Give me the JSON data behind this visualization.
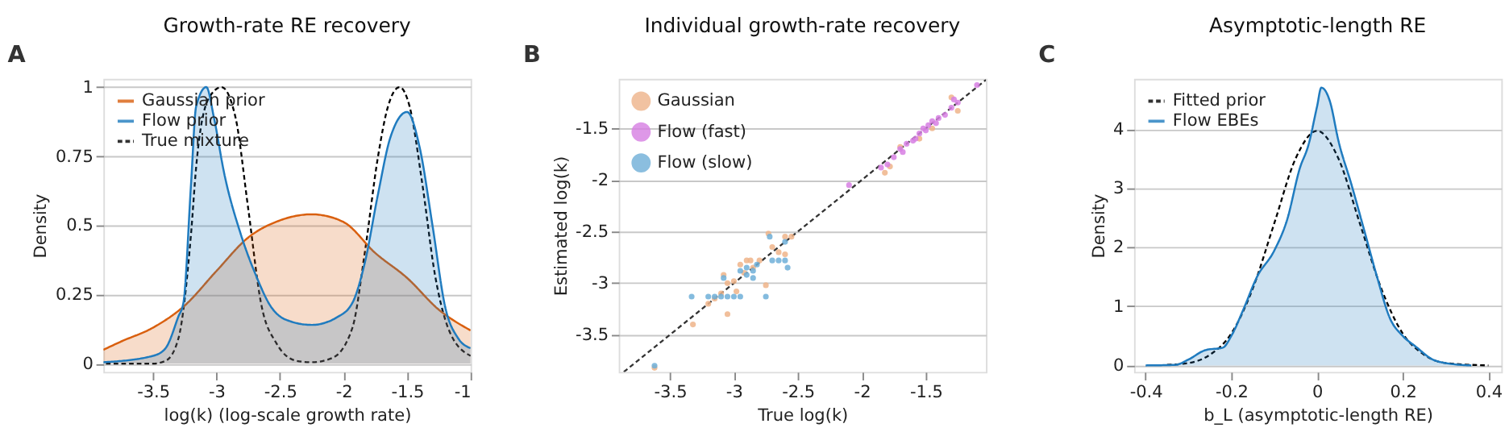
{
  "chart_data": [
    {
      "type": "line",
      "title": "Growth-rate RE recovery",
      "xlabel": "log(k)  (log-scale growth rate)",
      "ylabel": "Density",
      "annotations": [
        "A"
      ],
      "xlim": [
        -3.89,
        -1
      ],
      "xticks": [
        -3.5,
        -3,
        -2.5,
        -2,
        -1.5,
        -1
      ],
      "ylim": [
        -0.03,
        1.03
      ],
      "yticks": [
        0,
        0.25,
        0.5,
        0.75,
        1
      ],
      "grid": "y",
      "legend": "top left",
      "series": [
        {
          "name": "Gaussian prior",
          "type": "area",
          "color": "#d95f0e",
          "line_style": "solid",
          "x": [
            -3.89,
            -3.75,
            -3.5,
            -3.25,
            -3,
            -2.75,
            -2.5,
            -2.25,
            -2,
            -1.75,
            -1.5,
            -1.25,
            -1
          ],
          "values": [
            0.05,
            0.08,
            0.13,
            0.21,
            0.335,
            0.456,
            0.518,
            0.54,
            0.512,
            0.4,
            0.31,
            0.195,
            0.12
          ]
        },
        {
          "name": "Flow prior",
          "type": "area",
          "color": "#1f7bbf",
          "line_style": "solid",
          "x": [
            -3.89,
            -3.5,
            -3.4,
            -3.3,
            -3.26,
            -3.2,
            -3.16,
            -3.08,
            -3.02,
            -2.94,
            -2.81,
            -2.69,
            -2.57,
            -2.45,
            -2.25,
            -2.05,
            -1.93,
            -1.83,
            -1.73,
            -1.63,
            -1.5,
            -1.4,
            -1.3,
            -1.2,
            -1.1,
            -1
          ],
          "values": [
            0.005,
            0.028,
            0.056,
            0.17,
            0.22,
            0.65,
            0.93,
            1.0,
            0.89,
            0.69,
            0.47,
            0.32,
            0.205,
            0.158,
            0.14,
            0.168,
            0.22,
            0.37,
            0.61,
            0.82,
            0.91,
            0.78,
            0.5,
            0.205,
            0.093,
            0.056
          ]
        },
        {
          "name": "True mixture",
          "type": "line",
          "color": "#000000",
          "line_style": "dashed",
          "x": [
            -3.87,
            -3.5,
            -3.4,
            -3.3,
            -3.2,
            -3.16,
            -3.06,
            -2.96,
            -2.85,
            -2.75,
            -2.65,
            -2.53,
            -2.37,
            -2.25,
            -2.09,
            -1.93,
            -1.83,
            -1.73,
            -1.65,
            -1.56,
            -1.48,
            -1.38,
            -1.28,
            -1.16,
            -1
          ],
          "values": [
            0,
            0,
            0.01,
            0.09,
            0.47,
            0.71,
            0.96,
            1.0,
            0.89,
            0.56,
            0.22,
            0.075,
            0.01,
            0.005,
            0.02,
            0.13,
            0.41,
            0.745,
            0.93,
            1.0,
            0.93,
            0.65,
            0.32,
            0.11,
            0.028
          ]
        }
      ]
    },
    {
      "type": "scatter",
      "title": "Individual growth-rate recovery",
      "xlabel": "True log(k)",
      "ylabel": "Estimated log(k)",
      "annotations": [
        "B"
      ],
      "xlim": [
        -3.9,
        -1.03
      ],
      "xticks": [
        -3.5,
        -3,
        -2.5,
        -2,
        -1.5
      ],
      "ylim": [
        -3.86,
        -1.02
      ],
      "yticks": [
        -3.5,
        -3,
        -2.5,
        -2,
        -1.5
      ],
      "grid": "y",
      "legend": "top left",
      "marker": "circle",
      "series": [
        {
          "type": "line",
          "marker": "none",
          "color": "#333333",
          "line_style": "dashed",
          "x": [
            -3.86,
            -1.03
          ],
          "values": [
            -3.86,
            -1.03
          ]
        },
        {
          "name": "Gaussian",
          "color": "#eeb48a",
          "x": [
            -3.62,
            -3.32,
            -3.2,
            -3.15,
            -3.1,
            -3.05,
            -3.05,
            -3.0,
            -2.98,
            -2.95,
            -2.92,
            -2.9,
            -2.87,
            -2.85,
            -2.8,
            -2.75,
            -2.73,
            -2.7,
            -2.65,
            -2.6,
            -2.6,
            -2.55,
            -3.08,
            -1.82,
            -1.78,
            -1.7,
            -1.55,
            -1.45,
            -1.25,
            -1.3
          ],
          "values": [
            -3.82,
            -3.4,
            -3.2,
            -3.15,
            -3.1,
            -3.3,
            -3.0,
            -2.98,
            -3.08,
            -2.82,
            -2.9,
            -2.78,
            -2.78,
            -2.85,
            -2.78,
            -3.02,
            -2.52,
            -2.65,
            -2.7,
            -2.55,
            -2.72,
            -2.55,
            -2.92,
            -1.93,
            -1.87,
            -1.68,
            -1.6,
            -1.5,
            -1.33,
            -1.2
          ]
        },
        {
          "name": "Flow (fast)",
          "color": "#d77fe3",
          "x": [
            -2.1,
            -1.85,
            -1.8,
            -1.75,
            -1.7,
            -1.68,
            -1.65,
            -1.6,
            -1.58,
            -1.55,
            -1.52,
            -1.5,
            -1.48,
            -1.45,
            -1.42,
            -1.4,
            -1.35,
            -1.3,
            -1.28,
            -1.25,
            -1.1
          ],
          "values": [
            -2.05,
            -1.88,
            -1.85,
            -1.78,
            -1.7,
            -1.73,
            -1.65,
            -1.62,
            -1.6,
            -1.55,
            -1.5,
            -1.52,
            -1.47,
            -1.43,
            -1.45,
            -1.4,
            -1.37,
            -1.3,
            -1.22,
            -1.25,
            -1.08
          ]
        },
        {
          "name": "Flow (slow)",
          "color": "#6fafd8",
          "x": [
            -3.62,
            -3.33,
            -3.2,
            -3.15,
            -3.1,
            -3.05,
            -3.0,
            -2.95,
            -3.08,
            -2.95,
            -2.9,
            -2.85,
            -2.82,
            -2.85,
            -2.75,
            -2.72,
            -2.7,
            -2.65,
            -2.6,
            -2.58,
            -2.6,
            -2.9
          ],
          "values": [
            -3.8,
            -3.13,
            -3.13,
            -3.13,
            -3.13,
            -3.13,
            -3.13,
            -3.13,
            -2.95,
            -2.88,
            -2.92,
            -2.88,
            -2.82,
            -2.95,
            -3.13,
            -2.55,
            -2.78,
            -2.78,
            -2.6,
            -2.85,
            -2.78,
            -2.85
          ]
        }
      ]
    },
    {
      "type": "line",
      "title": "Asymptotic-length RE",
      "xlabel": "b_L  (asymptotic-length RE)",
      "ylabel": "Density",
      "annotations": [
        "C"
      ],
      "xlim": [
        -0.427,
        0.43
      ],
      "xticks": [
        -0.4,
        -0.2,
        0,
        0.2,
        0.4
      ],
      "ylim": [
        -0.11,
        4.85
      ],
      "yticks": [
        0,
        1,
        2,
        3,
        4
      ],
      "grid": "y",
      "legend": "top left",
      "series": [
        {
          "name": "Fitted prior",
          "type": "line",
          "color": "#000000",
          "line_style": "dashed",
          "x": [
            -0.35,
            -0.3,
            -0.25,
            -0.2,
            -0.15,
            -0.1,
            -0.05,
            0,
            0.05,
            0.1,
            0.15,
            0.2,
            0.25,
            0.3,
            0.4
          ],
          "values": [
            0.01,
            0.04,
            0.18,
            0.54,
            1.3,
            2.4,
            3.5,
            3.97,
            3.5,
            2.4,
            1.3,
            0.54,
            0.18,
            0.04,
            0
          ]
        },
        {
          "name": "Flow EBEs",
          "type": "area",
          "color": "#1f7bbf",
          "line_style": "solid",
          "x": [
            -0.4,
            -0.33,
            -0.3,
            -0.26,
            -0.22,
            -0.2,
            -0.17,
            -0.14,
            -0.1,
            -0.07,
            -0.04,
            -0.02,
            0,
            0.01,
            0.03,
            0.05,
            0.08,
            0.11,
            0.14,
            0.17,
            0.2,
            0.23,
            0.27,
            0.3,
            0.36
          ],
          "values": [
            0,
            0.01,
            0.1,
            0.26,
            0.3,
            0.5,
            0.98,
            1.5,
            1.94,
            2.46,
            3.34,
            3.73,
            4.38,
            4.7,
            4.47,
            3.8,
            3.07,
            2.29,
            1.5,
            0.8,
            0.5,
            0.32,
            0.1,
            0.04,
            0
          ]
        }
      ]
    }
  ]
}
